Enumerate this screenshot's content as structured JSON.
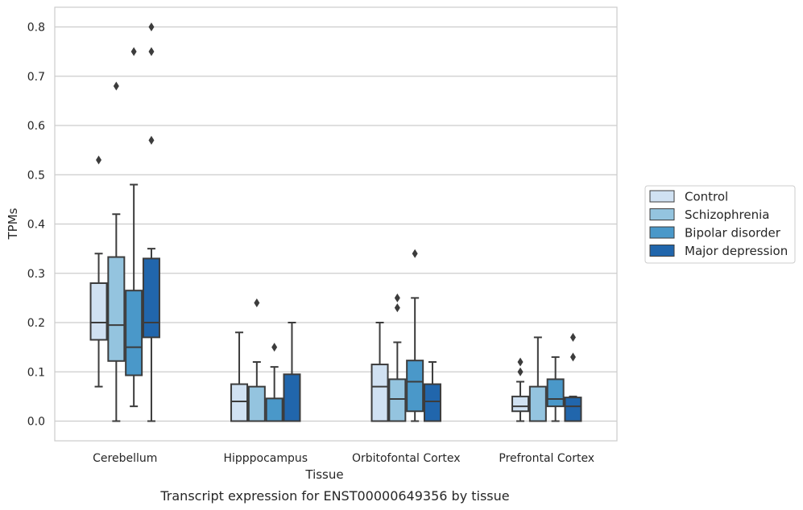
{
  "chart_data": {
    "type": "box",
    "caption": "Transcript expression for ENST00000649356 by tissue",
    "xlabel": "Tissue",
    "ylabel": "TPMs",
    "ylim": [
      -0.04,
      0.84
    ],
    "yticks": [
      0.0,
      0.1,
      0.2,
      0.3,
      0.4,
      0.5,
      0.6,
      0.7,
      0.8
    ],
    "ytick_labels": [
      "0.0",
      "0.1",
      "0.2",
      "0.3",
      "0.4",
      "0.5",
      "0.6",
      "0.7",
      "0.8"
    ],
    "grid": "horizontal",
    "legend_position": "right",
    "categories": [
      "Cerebellum",
      "Hipppocampus",
      "Orbitofontal Cortex",
      "Prefrontal Cortex"
    ],
    "series": [
      {
        "name": "Control",
        "color": "#d0e1f2",
        "boxes": [
          {
            "whisker_low": 0.07,
            "q1": 0.165,
            "median": 0.2,
            "q3": 0.28,
            "whisker_high": 0.34,
            "outliers": [
              0.53
            ]
          },
          {
            "whisker_low": 0.0,
            "q1": 0.0,
            "median": 0.04,
            "q3": 0.075,
            "whisker_high": 0.18,
            "outliers": []
          },
          {
            "whisker_low": 0.0,
            "q1": 0.0,
            "median": 0.07,
            "q3": 0.115,
            "whisker_high": 0.2,
            "outliers": []
          },
          {
            "whisker_low": 0.0,
            "q1": 0.02,
            "median": 0.03,
            "q3": 0.05,
            "whisker_high": 0.08,
            "outliers": [
              0.1,
              0.12
            ]
          }
        ]
      },
      {
        "name": "Schizophrenia",
        "color": "#94c4df",
        "boxes": [
          {
            "whisker_low": 0.0,
            "q1": 0.122,
            "median": 0.195,
            "q3": 0.333,
            "whisker_high": 0.42,
            "outliers": [
              0.68
            ]
          },
          {
            "whisker_low": 0.0,
            "q1": 0.0,
            "median": 0.0,
            "q3": 0.07,
            "whisker_high": 0.12,
            "outliers": [
              0.24
            ]
          },
          {
            "whisker_low": 0.0,
            "q1": 0.0,
            "median": 0.045,
            "q3": 0.085,
            "whisker_high": 0.16,
            "outliers": [
              0.23,
              0.25
            ]
          },
          {
            "whisker_low": 0.0,
            "q1": 0.0,
            "median": 0.0,
            "q3": 0.07,
            "whisker_high": 0.17,
            "outliers": []
          }
        ]
      },
      {
        "name": "Bipolar disorder",
        "color": "#4a98c9",
        "boxes": [
          {
            "whisker_low": 0.03,
            "q1": 0.093,
            "median": 0.15,
            "q3": 0.265,
            "whisker_high": 0.48,
            "outliers": [
              0.75
            ]
          },
          {
            "whisker_low": 0.0,
            "q1": 0.0,
            "median": 0.0,
            "q3": 0.046,
            "whisker_high": 0.11,
            "outliers": [
              0.15
            ]
          },
          {
            "whisker_low": 0.0,
            "q1": 0.02,
            "median": 0.08,
            "q3": 0.123,
            "whisker_high": 0.25,
            "outliers": [
              0.34
            ]
          },
          {
            "whisker_low": 0.0,
            "q1": 0.03,
            "median": 0.045,
            "q3": 0.085,
            "whisker_high": 0.13,
            "outliers": []
          }
        ]
      },
      {
        "name": "Major depression",
        "color": "#2166ac",
        "boxes": [
          {
            "whisker_low": 0.0,
            "q1": 0.17,
            "median": 0.2,
            "q3": 0.33,
            "whisker_high": 0.35,
            "outliers": [
              0.57,
              0.75,
              0.8
            ]
          },
          {
            "whisker_low": 0.0,
            "q1": 0.0,
            "median": 0.0,
            "q3": 0.095,
            "whisker_high": 0.2,
            "outliers": []
          },
          {
            "whisker_low": 0.0,
            "q1": 0.0,
            "median": 0.04,
            "q3": 0.075,
            "whisker_high": 0.12,
            "outliers": []
          },
          {
            "whisker_low": 0.0,
            "q1": 0.0,
            "median": 0.03,
            "q3": 0.048,
            "whisker_high": 0.05,
            "outliers": [
              0.13,
              0.17
            ]
          }
        ]
      }
    ]
  }
}
